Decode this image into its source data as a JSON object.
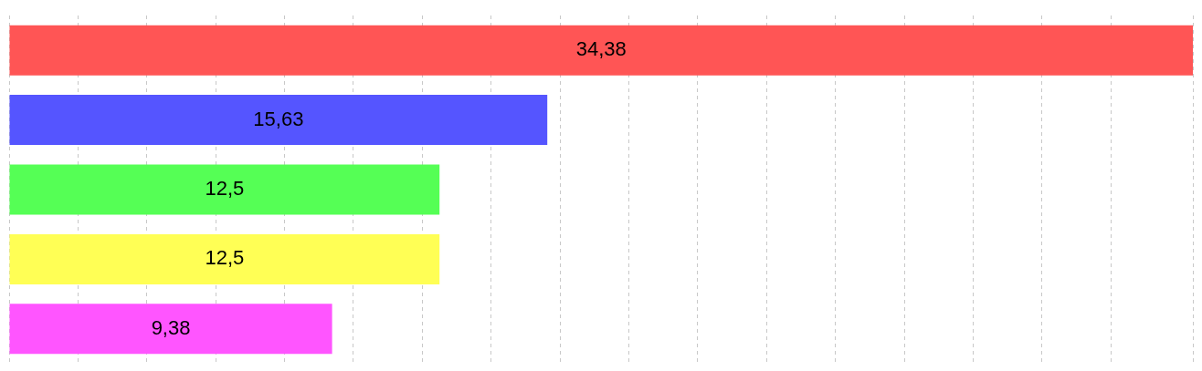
{
  "chart_data": {
    "type": "bar",
    "orientation": "horizontal",
    "categories": [
      null,
      null,
      null,
      null,
      null
    ],
    "values": [
      34.38,
      15.63,
      12.5,
      12.5,
      9.38
    ],
    "colors": [
      "#ff5555",
      "#5555ff",
      "#55ff55",
      "#ffff55",
      "#ff55ff"
    ],
    "value_labels": [
      "34,38",
      "15,63",
      "12,5",
      "12,5",
      "9,38"
    ],
    "grid": "x",
    "tick_labels": false,
    "legend": false
  }
}
